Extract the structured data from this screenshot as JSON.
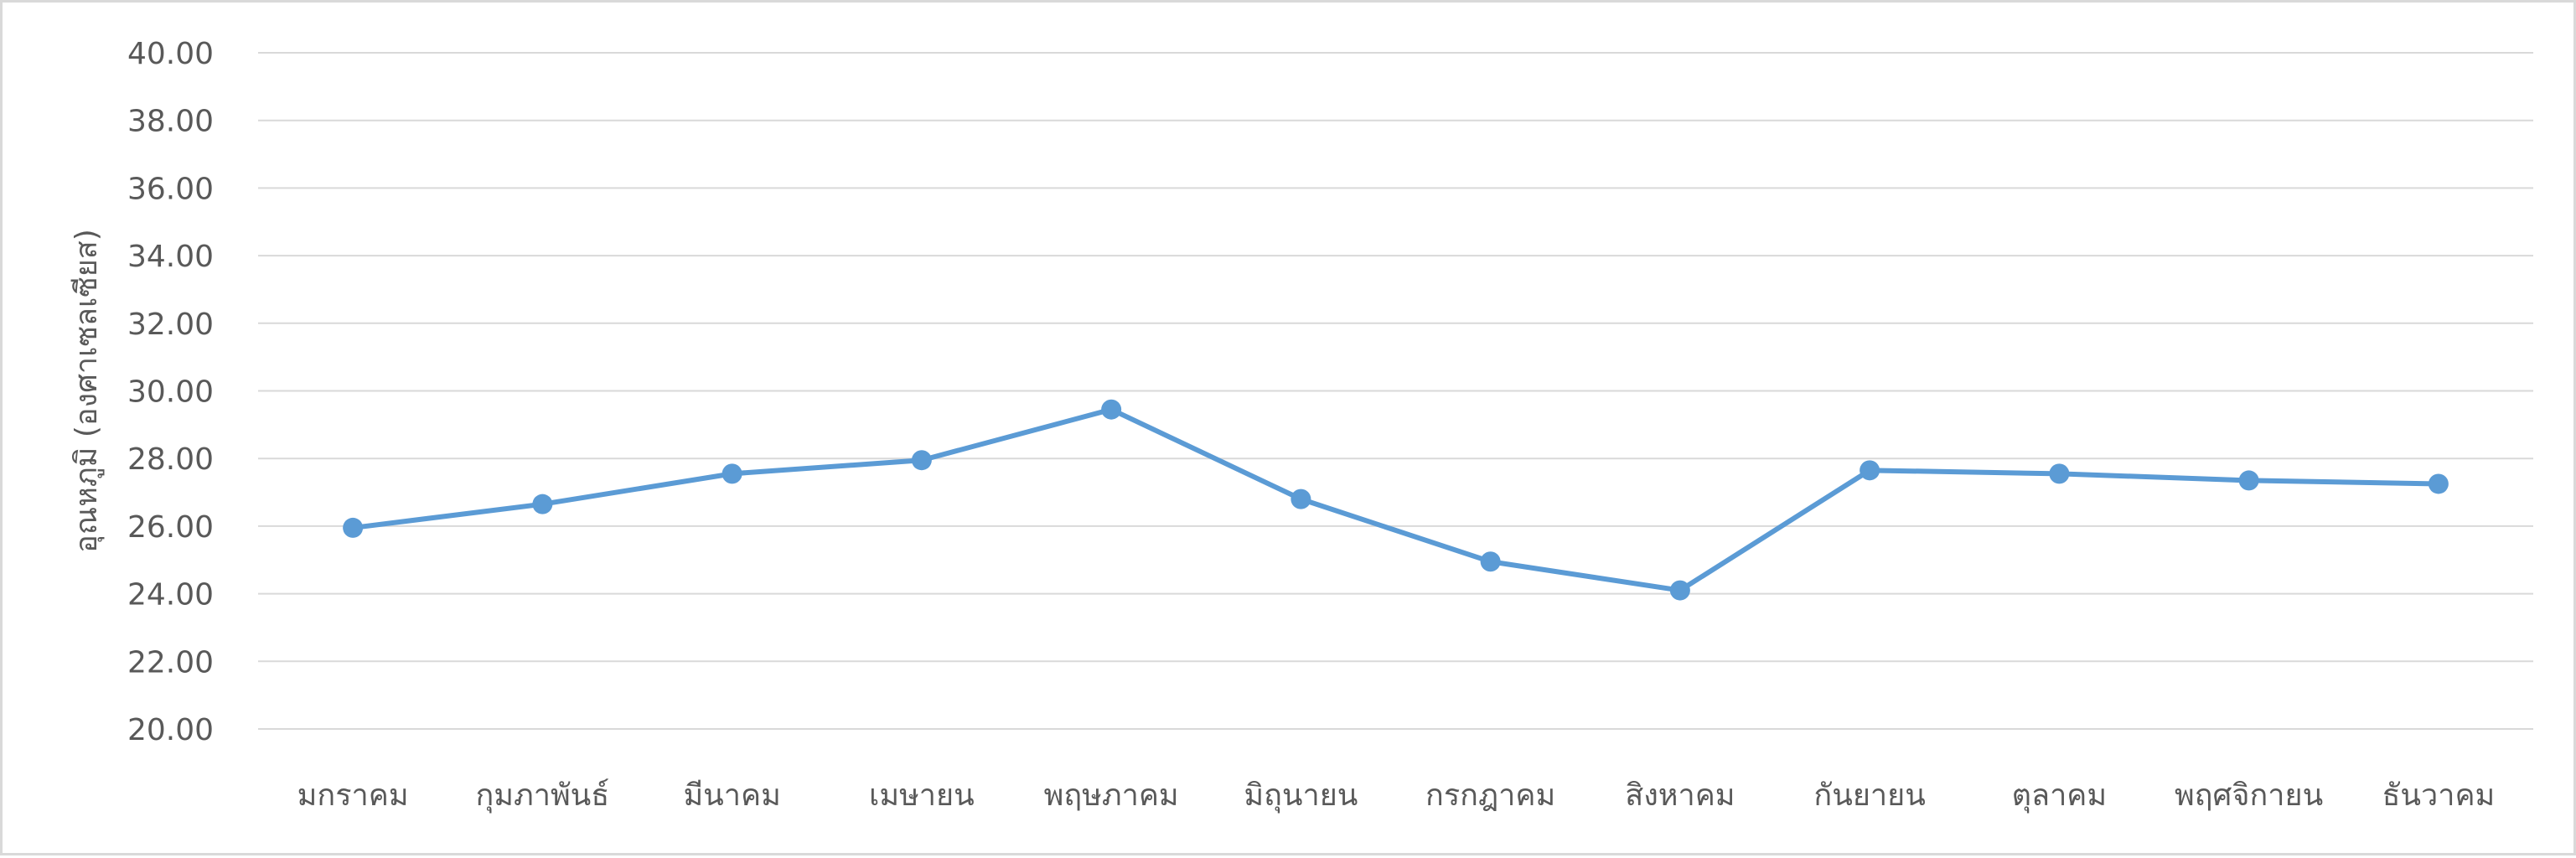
{
  "chart_data": {
    "type": "line",
    "title": "",
    "xlabel": "",
    "ylabel": "อุณหภูมิ (องศาเซลเซียส)",
    "categories": [
      "มกราคม",
      "กุมภาพันธ์",
      "มีนาคม",
      "เมษายน",
      "พฤษภาคม",
      "มิถุนายน",
      "กรกฎาคม",
      "สิงหาคม",
      "กันยายน",
      "ตุลาคม",
      "พฤศจิกายน",
      "ธันวาคม"
    ],
    "series": [
      {
        "values": [
          25.95,
          26.65,
          27.55,
          27.95,
          29.45,
          26.8,
          24.95,
          24.1,
          27.65,
          27.55,
          27.35,
          27.25
        ]
      }
    ],
    "ylim": [
      20,
      40
    ],
    "yticks": [
      "20.00",
      "22.00",
      "24.00",
      "26.00",
      "28.00",
      "30.00",
      "32.00",
      "34.00",
      "36.00",
      "38.00",
      "40.00"
    ],
    "grid": true,
    "legend": "none",
    "colors": {
      "line": "#5b9bd5",
      "grid": "#d9d9d9",
      "text": "#595959",
      "border": "#d9d9d9"
    }
  }
}
